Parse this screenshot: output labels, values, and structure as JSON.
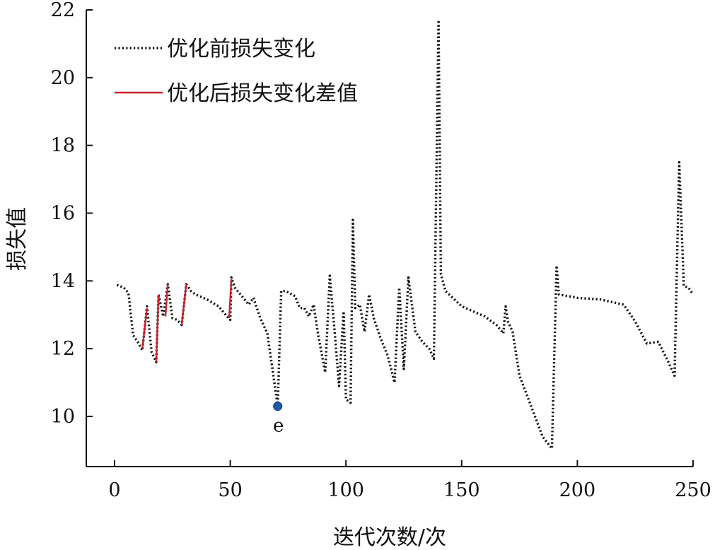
{
  "chart_data": {
    "type": "line",
    "xlabel": "迭代次数/次",
    "ylabel": "损失值",
    "xlim": [
      -12,
      250
    ],
    "ylim": [
      8.8,
      22
    ],
    "xticks": [
      0,
      50,
      100,
      150,
      200,
      250
    ],
    "yticks": [
      10,
      12,
      14,
      16,
      18,
      20,
      22
    ],
    "grid": false,
    "legend_position": "top-left",
    "series": [
      {
        "name": "优化前损失变化",
        "style": "dotted",
        "color": "#111111",
        "points": [
          [
            1,
            13.88
          ],
          [
            4,
            13.8
          ],
          [
            6,
            13.65
          ],
          [
            8,
            12.4
          ],
          [
            10,
            12.2
          ],
          [
            12,
            11.95
          ],
          [
            14,
            13.25
          ],
          [
            16,
            11.9
          ],
          [
            18,
            11.6
          ],
          [
            19,
            13.6
          ],
          [
            21,
            12.95
          ],
          [
            23,
            13.9
          ],
          [
            25,
            12.9
          ],
          [
            27,
            12.85
          ],
          [
            29,
            12.7
          ],
          [
            31,
            13.9
          ],
          [
            33,
            13.7
          ],
          [
            35,
            13.6
          ],
          [
            40,
            13.45
          ],
          [
            45,
            13.25
          ],
          [
            48,
            13.0
          ],
          [
            50,
            12.85
          ],
          [
            50.5,
            14.1
          ],
          [
            52,
            13.8
          ],
          [
            55,
            13.55
          ],
          [
            58,
            13.3
          ],
          [
            60,
            13.5
          ],
          [
            63,
            12.9
          ],
          [
            66,
            12.45
          ],
          [
            68,
            11.5
          ],
          [
            70.5,
            10.3
          ],
          [
            72,
            13.7
          ],
          [
            74,
            13.7
          ],
          [
            78,
            13.55
          ],
          [
            80,
            13.2
          ],
          [
            82,
            13.2
          ],
          [
            84,
            12.95
          ],
          [
            86,
            13.3
          ],
          [
            88,
            12.4
          ],
          [
            91,
            11.3
          ],
          [
            93,
            14.15
          ],
          [
            95,
            12.6
          ],
          [
            97,
            10.9
          ],
          [
            99,
            13.1
          ],
          [
            100,
            10.5
          ],
          [
            102,
            10.4
          ],
          [
            103,
            15.8
          ],
          [
            104,
            13.2
          ],
          [
            106,
            13.3
          ],
          [
            108,
            12.5
          ],
          [
            110,
            13.6
          ],
          [
            112,
            12.9
          ],
          [
            115,
            12.3
          ],
          [
            118,
            11.8
          ],
          [
            121,
            11.0
          ],
          [
            123,
            13.8
          ],
          [
            125,
            11.4
          ],
          [
            127,
            14.1
          ],
          [
            130,
            12.5
          ],
          [
            133,
            12.2
          ],
          [
            136,
            12.0
          ],
          [
            138,
            11.7
          ],
          [
            140,
            21.7
          ],
          [
            141,
            14.2
          ],
          [
            143,
            13.7
          ],
          [
            150,
            13.25
          ],
          [
            160,
            12.95
          ],
          [
            165,
            12.7
          ],
          [
            168,
            12.45
          ],
          [
            169,
            13.25
          ],
          [
            170,
            12.8
          ],
          [
            172,
            12.5
          ],
          [
            175,
            11.2
          ],
          [
            180,
            10.3
          ],
          [
            185,
            9.4
          ],
          [
            189,
            9.05
          ],
          [
            191,
            14.45
          ],
          [
            192,
            13.6
          ],
          [
            200,
            13.5
          ],
          [
            210,
            13.45
          ],
          [
            220,
            13.3
          ],
          [
            225,
            12.8
          ],
          [
            230,
            12.15
          ],
          [
            235,
            12.2
          ],
          [
            239,
            11.65
          ],
          [
            242,
            11.2
          ],
          [
            244,
            17.5
          ],
          [
            246,
            13.85
          ],
          [
            248,
            13.8
          ],
          [
            250,
            13.6
          ]
        ]
      },
      {
        "name": "优化后损失变化差值",
        "style": "solid",
        "color": "#c8232c",
        "segments": [
          [
            [
              12,
              12.0
            ],
            [
              14,
              13.2
            ]
          ],
          [
            [
              18,
              11.6
            ],
            [
              19,
              13.6
            ]
          ],
          [
            [
              22,
              12.95
            ],
            [
              23,
              13.9
            ]
          ],
          [
            [
              29,
              12.7
            ],
            [
              31,
              13.9
            ]
          ],
          [
            [
              49.5,
              12.9
            ],
            [
              50.5,
              14.05
            ]
          ]
        ]
      }
    ],
    "annotations": [
      {
        "label": "e",
        "x": 70.5,
        "y": 10.3,
        "color": "#1f5aa6"
      }
    ]
  }
}
